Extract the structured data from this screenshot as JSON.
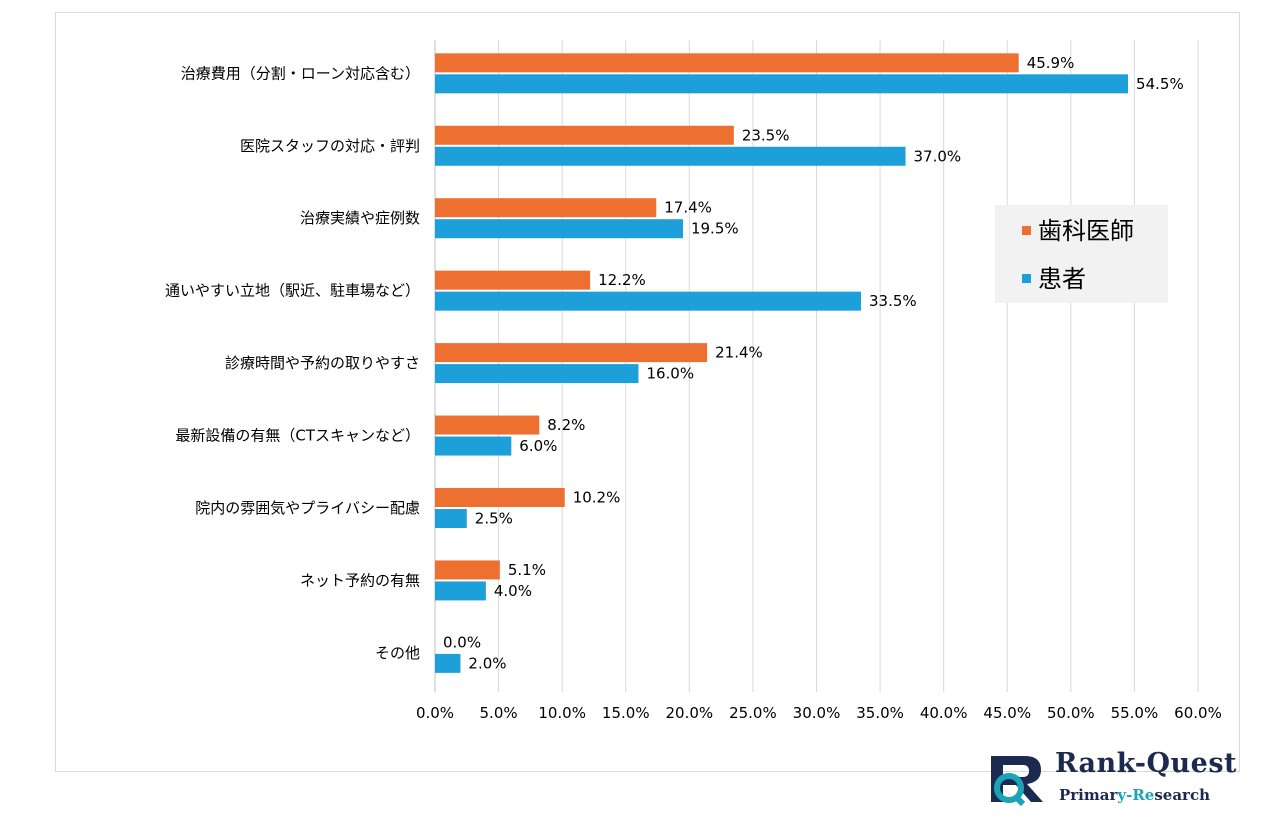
{
  "chart_data": {
    "type": "bar",
    "orientation": "horizontal",
    "categories": [
      "治療費用（分割・ローン対応含む）",
      "医院スタッフの対応・評判",
      "治療実績や症例数",
      "通いやすい立地（駅近、駐車場など）",
      "診療時間や予約の取りやすさ",
      "最新設備の有無（CTスキャンなど）",
      "院内の雰囲気やプライバシー配慮",
      "ネット予約の有無",
      "その他"
    ],
    "series": [
      {
        "name": "歯科医師",
        "color": "#ed7031",
        "values": [
          45.9,
          23.5,
          17.4,
          12.2,
          21.4,
          8.2,
          10.2,
          5.1,
          0.0
        ],
        "labels": [
          "45.9%",
          "23.5%",
          "17.4%",
          "12.2%",
          "21.4%",
          "8.2%",
          "10.2%",
          "5.1%",
          "0.0%"
        ]
      },
      {
        "name": "患者",
        "color": "#1d9fd9",
        "values": [
          54.5,
          37.0,
          19.5,
          33.5,
          16.0,
          6.0,
          2.5,
          4.0,
          2.0
        ],
        "labels": [
          "54.5%",
          "37.0%",
          "19.5%",
          "33.5%",
          "16.0%",
          "6.0%",
          "2.5%",
          "4.0%",
          "2.0%"
        ]
      }
    ],
    "xlim": [
      0,
      60
    ],
    "xticks": [
      "0.0%",
      "5.0%",
      "10.0%",
      "15.0%",
      "20.0%",
      "25.0%",
      "30.0%",
      "35.0%",
      "40.0%",
      "45.0%",
      "50.0%",
      "55.0%",
      "60.0%"
    ],
    "grid": true,
    "legend_position": "right"
  },
  "logo": {
    "brand": "Rank-Quest",
    "sub_before": "Primar",
    "sub_accent": "y-Re",
    "sub_after": "search"
  }
}
